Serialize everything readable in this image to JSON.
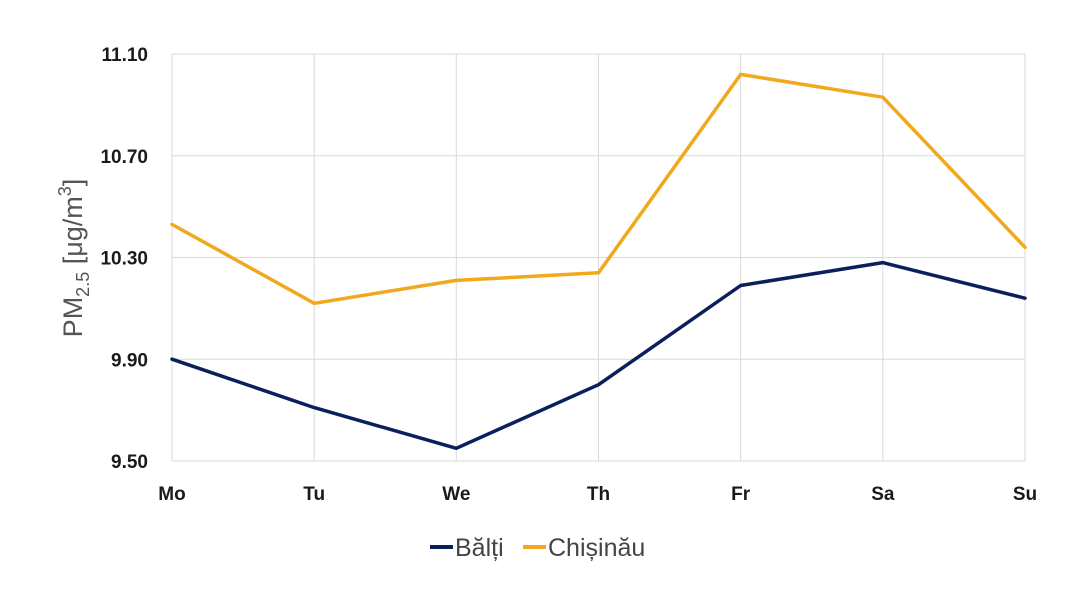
{
  "chart_data": {
    "type": "line",
    "categories": [
      "Mo",
      "Tu",
      "We",
      "Th",
      "Fr",
      "Sa",
      "Su"
    ],
    "series": [
      {
        "name": "Bălți",
        "color": "#0b1f5c",
        "values": [
          9.9,
          9.71,
          9.55,
          9.8,
          10.19,
          10.28,
          10.14
        ]
      },
      {
        "name": "Chișinău",
        "color": "#f2a81d",
        "values": [
          10.43,
          10.12,
          10.21,
          10.24,
          11.02,
          10.93,
          10.34
        ]
      }
    ],
    "ylabel_main": "PM",
    "ylabel_sub": "2.5",
    "ylabel_unit": " [μg/m",
    "ylabel_sup": "3",
    "ylabel_close": "]",
    "ylim": [
      9.5,
      11.1
    ],
    "yticks": [
      "9.50",
      "9.90",
      "10.30",
      "10.70",
      "11.10"
    ],
    "grid": true,
    "legend_position": "bottom"
  }
}
